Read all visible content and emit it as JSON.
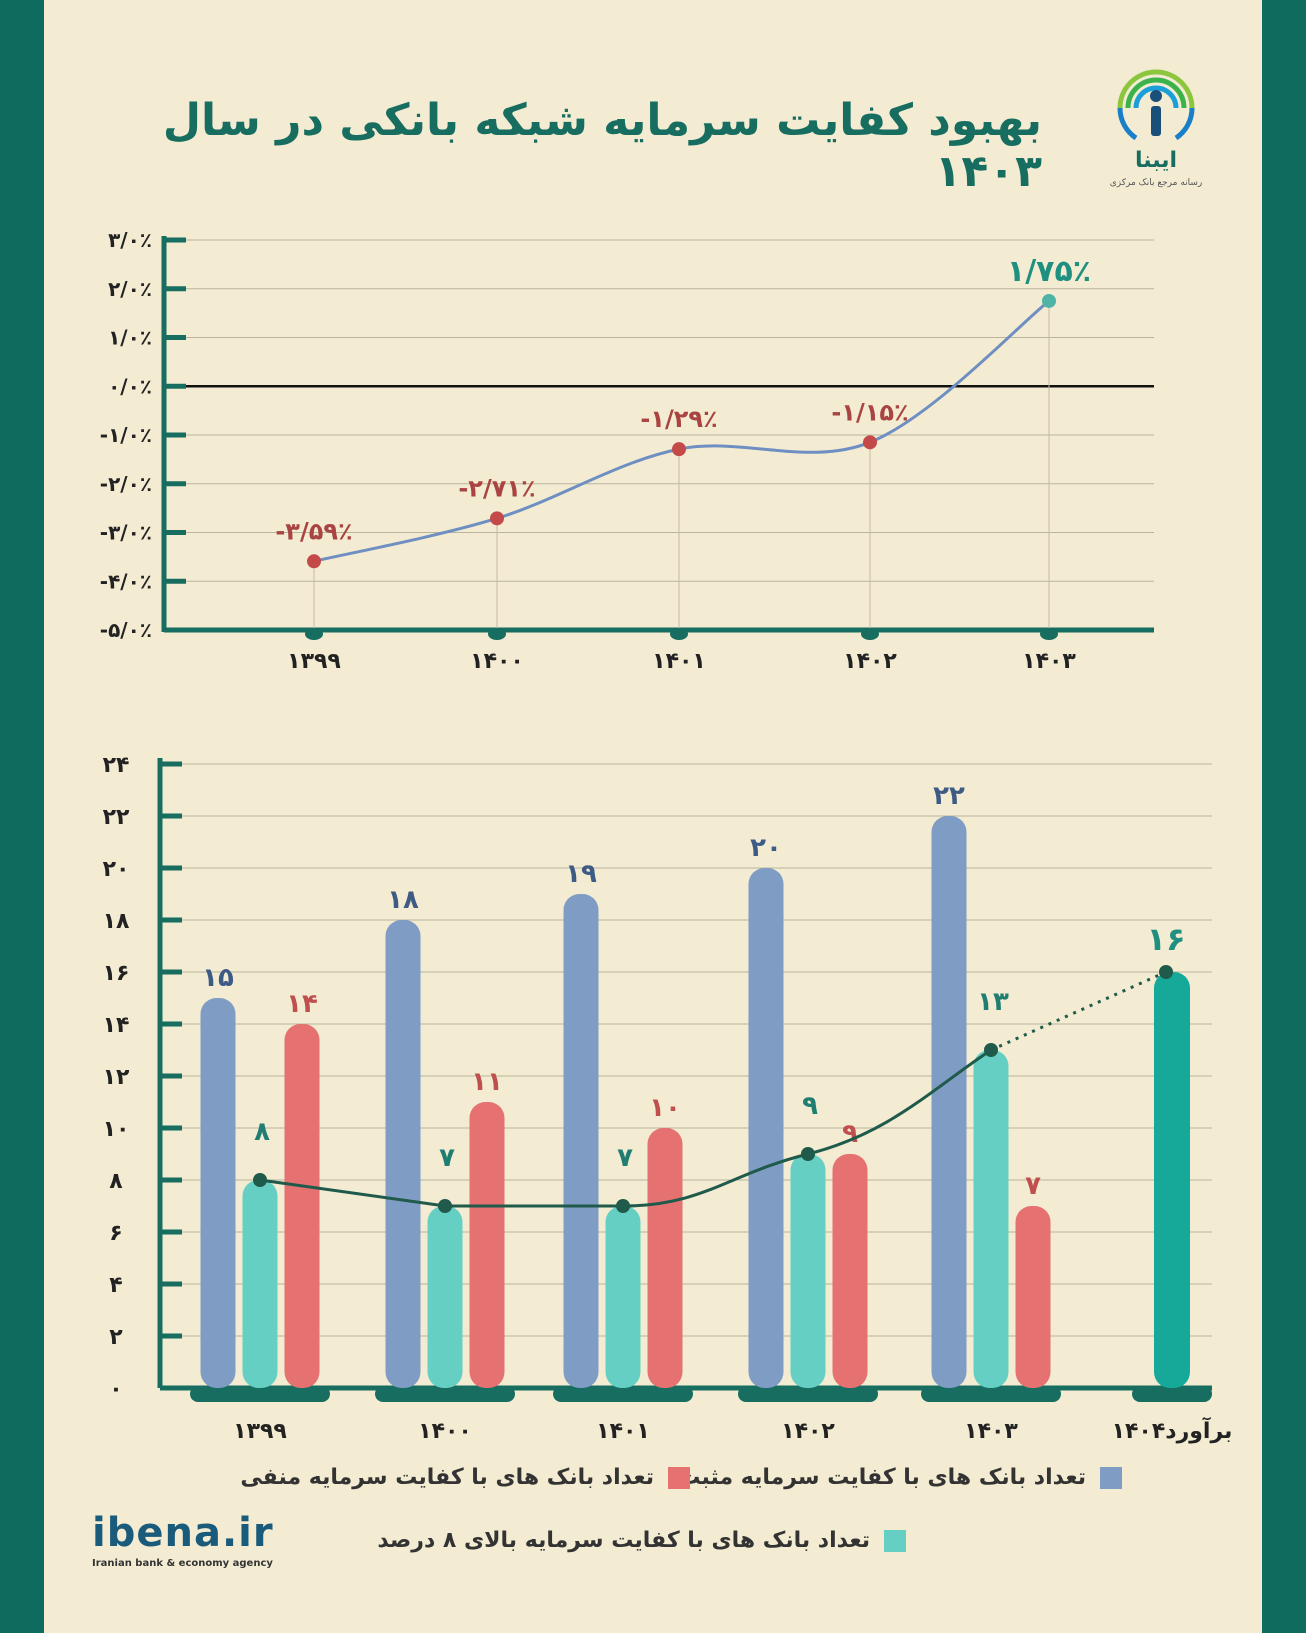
{
  "title": "بهبود کفایت سرمایه شبکه بانکی در سال ۱۴۰۳",
  "logo": {
    "name": "ایبنا",
    "subtitle": "رسانه مرجع بانک مرکزی"
  },
  "brand": {
    "name": "ibena.ir",
    "subtitle": "Iranian bank & economy agency"
  },
  "colors": {
    "positive": "#7f9cc5",
    "negative": "#e57171",
    "above8": "#66cfc4",
    "forecast": "#16a99a",
    "line_top": "#6f8fc2",
    "point_top": "#c44a4a",
    "trend": "#1f5a4a",
    "axis": "#176d5f"
  },
  "chart_data": [
    {
      "type": "line",
      "x": [
        "۱۳۹۹",
        "۱۴۰۰",
        "۱۴۰۱",
        "۱۴۰۲",
        "۱۴۰۳"
      ],
      "values": [
        -3.59,
        -2.71,
        -1.29,
        -1.15,
        1.75
      ],
      "data_labels": [
        "-۳/۵۹٪",
        "-۲/۷۱٪",
        "-۱/۲۹٪",
        "-۱/۱۵٪",
        "۱/۷۵٪"
      ],
      "y_ticks": [
        3,
        2,
        1,
        0,
        -1,
        -2,
        -3,
        -4,
        -5
      ],
      "y_tick_labels": [
        "۳/۰٪",
        "۲/۰٪",
        "۱/۰٪",
        "۰/۰٪",
        "-۱/۰٪",
        "-۲/۰٪",
        "-۳/۰٪",
        "-۴/۰٪",
        "-۵/۰٪"
      ],
      "ylim": [
        -5,
        3
      ],
      "grid": true
    },
    {
      "type": "bar",
      "categories": [
        "۱۳۹۹",
        "۱۴۰۰",
        "۱۴۰۱",
        "۱۴۰۲",
        "۱۴۰۳",
        "برآورد۱۴۰۴"
      ],
      "series": [
        {
          "name": "تعداد بانک های با کفایت سرمایه مثبت",
          "values": [
            15,
            18,
            19,
            20,
            22,
            null
          ],
          "labels": [
            "۱۵",
            "۱۸",
            "۱۹",
            "۲۰",
            "۲۲",
            ""
          ]
        },
        {
          "name": "تعداد بانک های با کفایت سرمایه بالای ۸ درصد",
          "values": [
            8,
            7,
            7,
            9,
            13,
            16
          ],
          "labels": [
            "۸",
            "۷",
            "۷",
            "۹",
            "۱۳",
            "۱۶"
          ]
        },
        {
          "name": "تعداد بانک های با کفایت سرمایه منفی",
          "values": [
            14,
            11,
            10,
            9,
            7,
            null
          ],
          "labels": [
            "۱۴",
            "۱۱",
            "۱۰",
            "۹",
            "۷",
            ""
          ]
        }
      ],
      "y_ticks": [
        0,
        2,
        4,
        6,
        8,
        10,
        12,
        14,
        16,
        18,
        20,
        22,
        24
      ],
      "y_tick_labels": [
        "۰",
        "۲",
        "۴",
        "۶",
        "۸",
        "۱۰",
        "۱۲",
        "۱۴",
        "۱۶",
        "۱۸",
        "۲۰",
        "۲۲",
        "۲۴"
      ],
      "ylim": [
        0,
        24
      ],
      "grid": true,
      "legend_position": "bottom"
    }
  ]
}
